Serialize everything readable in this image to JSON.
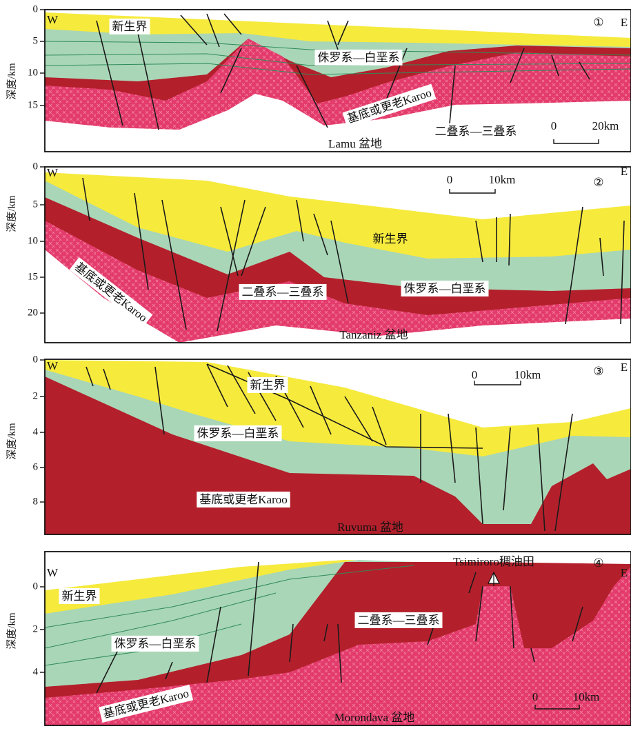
{
  "panels": [
    {
      "number": "①",
      "west": "W",
      "east": "E",
      "y_axis_label": "深度/km",
      "y_ticks": [
        0,
        5,
        10,
        15
      ],
      "cenozoic": "新生界",
      "jurassic_cretaceous": "侏罗系—白垩系",
      "basement": "基底或更老Karoo",
      "permian_triassic": "二叠系—三叠系",
      "scale_bar": [
        "0",
        "20km"
      ],
      "basin": "Lamu 盆地"
    },
    {
      "number": "②",
      "west": "W",
      "east": "E",
      "y_axis_label": "深度/km",
      "y_ticks": [
        0,
        5,
        10,
        15,
        20
      ],
      "cenozoic": "新生界",
      "jurassic_cretaceous": "侏罗系—白垩系",
      "basement": "基底或更老Karoo",
      "permian_triassic": "二叠系—三叠系",
      "scale_bar": [
        "0",
        "10km"
      ],
      "basin": "Tanzaniz 盆地"
    },
    {
      "number": "③",
      "west": "W",
      "east": "E",
      "y_axis_label": "深度/km",
      "y_ticks": [
        0,
        2,
        4,
        6,
        8
      ],
      "cenozoic": "新生界",
      "jurassic_cretaceous": "侏罗系—白垩系",
      "basement": "基底或更老Karoo",
      "scale_bar": [
        "0",
        "10km"
      ],
      "basin": "Ruvuma 盆地"
    },
    {
      "number": "④",
      "west": "W",
      "east": "E",
      "y_axis_label": "深度/km",
      "y_ticks": [
        0,
        2,
        4
      ],
      "cenozoic": "新生界",
      "jurassic_cretaceous": "侏罗系—白垩系",
      "basement": "基底或更老Karoo",
      "permian_triassic": "二叠系—三叠系",
      "oilfield": "Tsimiroro稠油田",
      "scale_bar": [
        "0",
        "10km"
      ],
      "basin": "Morondava 盆地"
    }
  ]
}
